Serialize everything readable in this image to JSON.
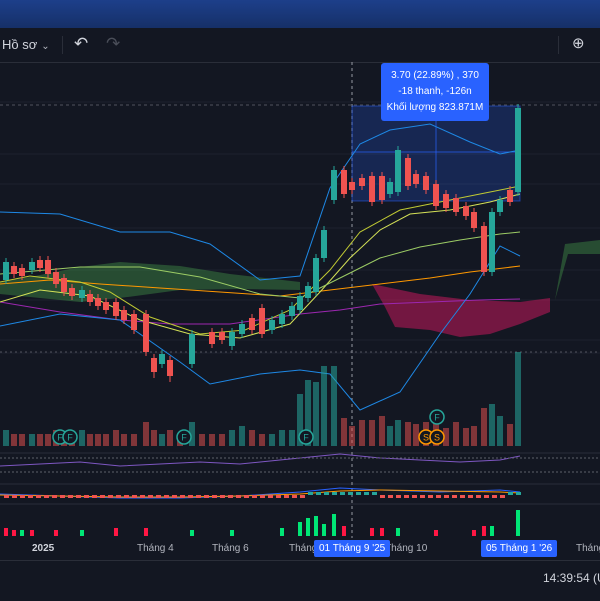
{
  "toolbar": {
    "profile_label": "Hồ sơ",
    "chevron": "⌄",
    "undo_icon": "↶",
    "redo_icon": "↷",
    "zoom_icon": "⊕"
  },
  "tooltip": {
    "line1": "3.70 (22.89%) , 370",
    "line2": "-18 thanh, -126n",
    "line3": "Khối lượng 823.871M"
  },
  "x_axis": {
    "labels": [
      "2025",
      "Tháng 4",
      "Tháng 6",
      "Tháng",
      "Tháng 10",
      "Tháng"
    ],
    "highlight_start": "01 Tháng 9 '25",
    "highlight_end": "05 Tháng 1 '26"
  },
  "status": {
    "time": "14:39:54 (U"
  },
  "colors": {
    "background": "#131722",
    "up": "#26a69a",
    "down": "#ef5350",
    "accent": "#2962ff",
    "cloud_green": "#4caf50",
    "cloud_red": "#c2185b"
  },
  "icons": {
    "dividend_marker": "F",
    "split_marker": "S"
  }
}
